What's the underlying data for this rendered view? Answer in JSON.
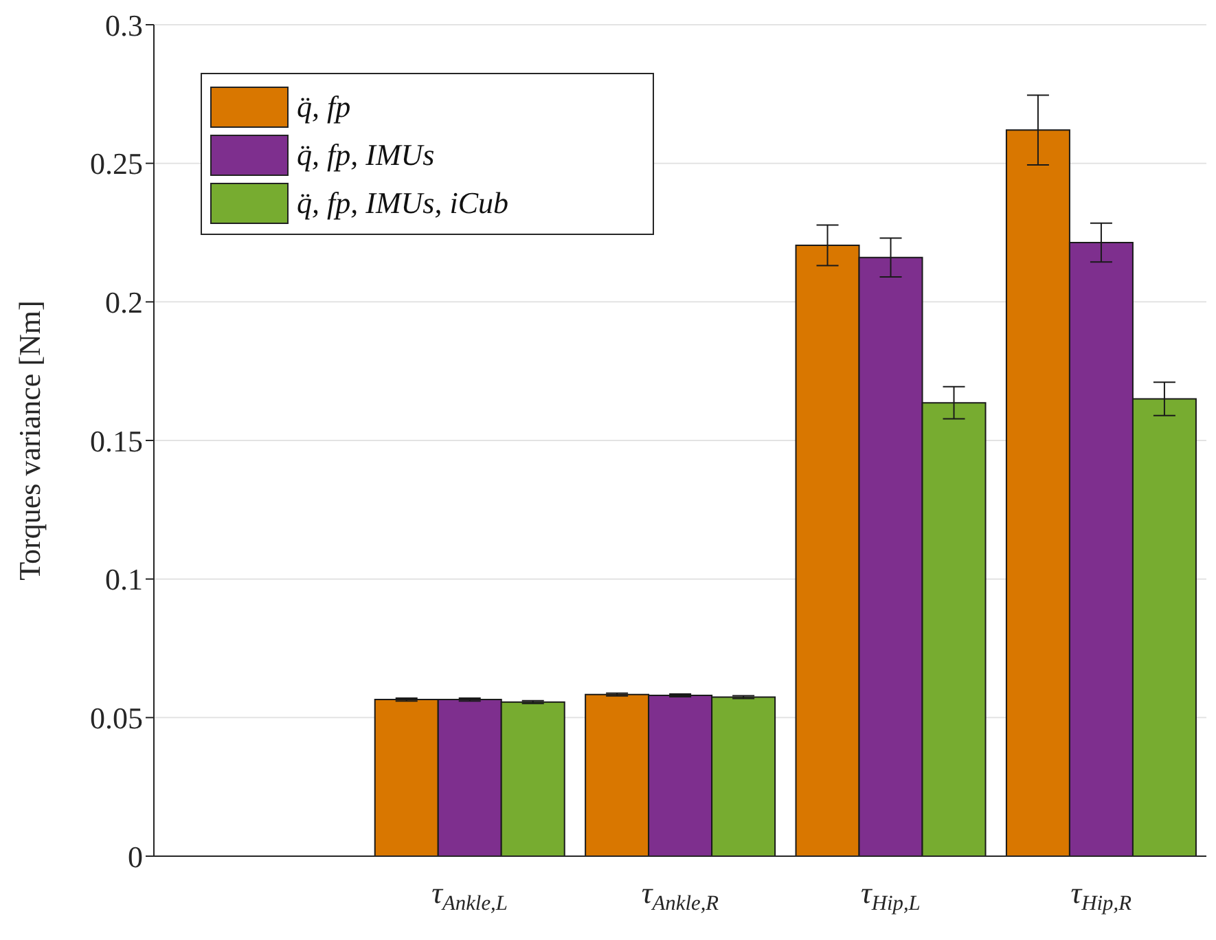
{
  "chart_data": {
    "type": "bar",
    "ylabel": "Torques variance [Nm]",
    "categories": [
      null,
      "τ$_{Ankle,L}$",
      "τ$_{Ankle,R}$",
      "τ$_{Hip,L}$",
      "τ$_{Hip,R}$"
    ],
    "series": [
      {
        "name": "q̈, fp",
        "color": "#d97700",
        "values": [
          null,
          0.0565,
          0.0583,
          0.2204,
          0.262
        ],
        "errors": [
          null,
          0.0005,
          0.0005,
          0.0073,
          0.0126
        ]
      },
      {
        "name": "q̈, fp, IMUs",
        "color": "#7e2f8e",
        "values": [
          null,
          0.0565,
          0.058,
          0.216,
          0.2214
        ],
        "errors": [
          null,
          0.0005,
          0.0005,
          0.007,
          0.007
        ]
      },
      {
        "name": "q̈, fp, IMUs, iCub",
        "color": "#77ac30",
        "values": [
          null,
          0.0556,
          0.0574,
          0.1636,
          0.165
        ],
        "errors": [
          null,
          0.0005,
          0.0005,
          0.0058,
          0.006
        ]
      }
    ],
    "ylim": [
      0,
      0.3
    ],
    "yticks": [
      0,
      0.05,
      0.1,
      0.15,
      0.2,
      0.25,
      0.3
    ],
    "grid": "y",
    "legend": "top left"
  }
}
